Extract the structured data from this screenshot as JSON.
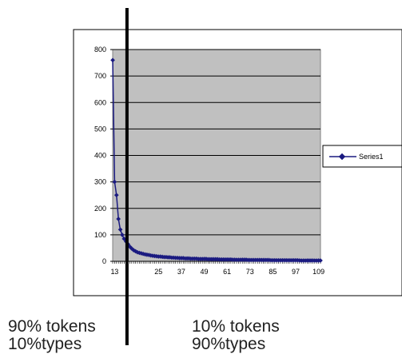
{
  "chart_data": {
    "type": "line",
    "x": [
      1,
      2,
      3,
      4,
      5,
      6,
      7,
      8,
      9,
      10,
      11,
      12,
      13,
      14,
      15,
      16,
      17,
      18,
      19,
      20,
      21,
      22,
      23,
      24,
      25,
      26,
      27,
      28,
      29,
      30,
      31,
      32,
      33,
      34,
      35,
      36,
      37,
      38,
      39,
      40,
      41,
      42,
      43,
      44,
      45,
      46,
      47,
      48,
      49,
      50,
      51,
      52,
      53,
      54,
      55,
      56,
      57,
      58,
      59,
      60,
      61,
      62,
      63,
      64,
      65,
      66,
      67,
      68,
      69,
      70,
      71,
      72,
      73,
      74,
      75,
      76,
      77,
      78,
      79,
      80,
      81,
      82,
      83,
      84,
      85,
      86,
      87,
      88,
      89,
      90,
      91,
      92,
      93,
      94,
      95,
      96,
      97,
      98,
      99,
      100,
      101,
      102,
      103,
      104,
      105,
      106,
      107,
      108,
      109,
      110
    ],
    "series": [
      {
        "name": "Series1",
        "color": "#1a1a80",
        "values": [
          760,
          300,
          250,
          160,
          120,
          100,
          85,
          75,
          65,
          55,
          48,
          42,
          38,
          34,
          32,
          30,
          28,
          26,
          25,
          24,
          22,
          21,
          20,
          19,
          18,
          18,
          17,
          16,
          16,
          15,
          15,
          14,
          14,
          13,
          13,
          12,
          12,
          12,
          11,
          11,
          11,
          10,
          10,
          10,
          10,
          9,
          9,
          9,
          9,
          9,
          8,
          8,
          8,
          8,
          8,
          8,
          7,
          7,
          7,
          7,
          7,
          7,
          7,
          6,
          6,
          6,
          6,
          6,
          6,
          6,
          6,
          5,
          5,
          5,
          5,
          5,
          5,
          5,
          5,
          5,
          5,
          5,
          5,
          4,
          4,
          4,
          4,
          4,
          4,
          4,
          4,
          4,
          4,
          4,
          4,
          4,
          4,
          4,
          3,
          3,
          3,
          3,
          3,
          3,
          3,
          3,
          3,
          3,
          3,
          3
        ]
      }
    ],
    "y_ticks": [
      "800",
      "700",
      "600",
      "500",
      "400",
      "300",
      "200",
      "100",
      "0"
    ],
    "x_ticks": [
      "1",
      "3",
      "25",
      "37",
      "49",
      "61",
      "73",
      "85",
      "97",
      "109"
    ],
    "ylim": [
      0,
      800
    ],
    "grid": true,
    "plot_background": "#c0c0c0",
    "legend_position": "right",
    "divider_x": 8.5
  },
  "captions": {
    "left_line1": "90% tokens",
    "left_line2": "10%types",
    "right_line1": "10% tokens",
    "right_line2": "90%types"
  }
}
